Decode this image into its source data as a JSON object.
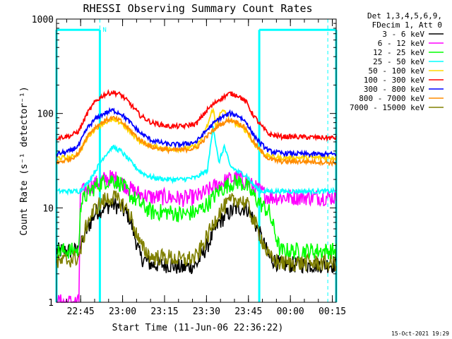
{
  "chart_data": {
    "type": "line",
    "title": "RHESSI Observing Summary Count Rates",
    "xlabel": "Start Time (11-Jun-06 22:36:22)",
    "ylabel": "Count Rate (s⁻¹ detector⁻¹)",
    "yscale": "log",
    "ylim": [
      1,
      1000
    ],
    "xlim_minutes": [
      0,
      100
    ],
    "y_ticks": [
      {
        "value": 1,
        "label": "1"
      },
      {
        "value": 10,
        "label": "10"
      },
      {
        "value": 100,
        "label": "100"
      },
      {
        "value": 1000,
        "label": "1000"
      }
    ],
    "x_ticks": [
      {
        "minute": 8.63,
        "label": "22:45"
      },
      {
        "minute": 23.63,
        "label": "23:00"
      },
      {
        "minute": 38.63,
        "label": "23:15"
      },
      {
        "minute": 53.63,
        "label": "23:30"
      },
      {
        "minute": 68.63,
        "label": "23:45"
      },
      {
        "minute": 83.63,
        "label": "00:00"
      },
      {
        "minute": 98.63,
        "label": "00:15"
      }
    ],
    "legend_header": [
      "Det 1,3,4,5,6,9,",
      "FDecim 1, Att 0"
    ],
    "legend_placement": "right",
    "footer": "15-Oct-2021 19:29",
    "annotations": [
      {
        "text": "N",
        "minute": 16.5,
        "value": 770
      }
    ],
    "night_intervals": [
      [
        0,
        15.5
      ],
      [
        72.5,
        100
      ]
    ],
    "night_level": 770,
    "dashed_markers": [
      15.5,
      97
    ],
    "series": [
      {
        "name": "3 - 6 keV",
        "color": "#000000",
        "points": [
          [
            0,
            3.5
          ],
          [
            8,
            3.5
          ],
          [
            11,
            6
          ],
          [
            14,
            9
          ],
          [
            17,
            10
          ],
          [
            20,
            11
          ],
          [
            23,
            10
          ],
          [
            26,
            8
          ],
          [
            28,
            5
          ],
          [
            30,
            3
          ],
          [
            34,
            2.5
          ],
          [
            40,
            2.5
          ],
          [
            45,
            2.3
          ],
          [
            50,
            2.5
          ],
          [
            54,
            4
          ],
          [
            58,
            7
          ],
          [
            62,
            9
          ],
          [
            65,
            10
          ],
          [
            68,
            10
          ],
          [
            70,
            8
          ],
          [
            73,
            5
          ],
          [
            76,
            3
          ],
          [
            80,
            2.5
          ],
          [
            90,
            2.5
          ],
          [
            100,
            2.5
          ]
        ]
      },
      {
        "name": "6 - 12 keV",
        "color": "#ff00ff",
        "points": [
          [
            0,
            1
          ],
          [
            8,
            1
          ],
          [
            8.5,
            14
          ],
          [
            11,
            16
          ],
          [
            14,
            18
          ],
          [
            17,
            20
          ],
          [
            20,
            21
          ],
          [
            23,
            19
          ],
          [
            26,
            16
          ],
          [
            30,
            14
          ],
          [
            34,
            13
          ],
          [
            40,
            13
          ],
          [
            45,
            12.5
          ],
          [
            50,
            13
          ],
          [
            54,
            15
          ],
          [
            58,
            18
          ],
          [
            62,
            20
          ],
          [
            65,
            21
          ],
          [
            68,
            19
          ],
          [
            70,
            17
          ],
          [
            73,
            15
          ],
          [
            76,
            13
          ],
          [
            80,
            13
          ],
          [
            90,
            13
          ],
          [
            100,
            13
          ]
        ]
      },
      {
        "name": "12 - 25 keV",
        "color": "#00ff00",
        "points": [
          [
            0,
            3.5
          ],
          [
            8,
            3.5
          ],
          [
            8.5,
            11
          ],
          [
            11,
            14
          ],
          [
            14,
            17
          ],
          [
            17,
            19
          ],
          [
            20,
            20
          ],
          [
            23,
            18
          ],
          [
            26,
            14
          ],
          [
            30,
            11
          ],
          [
            34,
            9
          ],
          [
            40,
            9
          ],
          [
            45,
            8.5
          ],
          [
            50,
            9
          ],
          [
            54,
            11
          ],
          [
            58,
            15
          ],
          [
            62,
            18
          ],
          [
            65,
            19
          ],
          [
            68,
            17
          ],
          [
            70,
            14
          ],
          [
            73,
            11
          ],
          [
            76,
            9
          ],
          [
            80,
            3.5
          ],
          [
            90,
            3.5
          ],
          [
            100,
            3.5
          ]
        ]
      },
      {
        "name": "25 - 50 keV",
        "color": "#00ffff",
        "points": [
          [
            0,
            15
          ],
          [
            8,
            15
          ],
          [
            11,
            18
          ],
          [
            14,
            25
          ],
          [
            17,
            35
          ],
          [
            20,
            44
          ],
          [
            23,
            40
          ],
          [
            26,
            32
          ],
          [
            30,
            24
          ],
          [
            34,
            21
          ],
          [
            40,
            20
          ],
          [
            45,
            20
          ],
          [
            50,
            21
          ],
          [
            54,
            25
          ],
          [
            56,
            75
          ],
          [
            58,
            30
          ],
          [
            60,
            45
          ],
          [
            62,
            28
          ],
          [
            65,
            24
          ],
          [
            68,
            22
          ],
          [
            70,
            18
          ],
          [
            73,
            15
          ],
          [
            80,
            15
          ],
          [
            90,
            15
          ],
          [
            100,
            15
          ]
        ]
      },
      {
        "name": "50 - 100 keV",
        "color": "#ffd700",
        "points": [
          [
            0,
            34
          ],
          [
            5,
            34
          ],
          [
            8,
            38
          ],
          [
            11,
            55
          ],
          [
            14,
            70
          ],
          [
            17,
            80
          ],
          [
            20,
            85
          ],
          [
            23,
            80
          ],
          [
            26,
            65
          ],
          [
            30,
            50
          ],
          [
            34,
            45
          ],
          [
            40,
            42
          ],
          [
            45,
            42
          ],
          [
            50,
            45
          ],
          [
            52,
            55
          ],
          [
            54,
            75
          ],
          [
            56,
            115
          ],
          [
            57,
            70
          ],
          [
            58,
            95
          ],
          [
            60,
            108
          ],
          [
            62,
            85
          ],
          [
            65,
            75
          ],
          [
            68,
            65
          ],
          [
            70,
            50
          ],
          [
            73,
            40
          ],
          [
            76,
            35
          ],
          [
            80,
            34
          ],
          [
            90,
            34
          ],
          [
            100,
            34
          ]
        ]
      },
      {
        "name": "100 - 300 keV",
        "color": "#ff0000",
        "points": [
          [
            0,
            55
          ],
          [
            5,
            58
          ],
          [
            8,
            65
          ],
          [
            11,
            100
          ],
          [
            14,
            135
          ],
          [
            17,
            158
          ],
          [
            20,
            168
          ],
          [
            23,
            158
          ],
          [
            26,
            130
          ],
          [
            30,
            95
          ],
          [
            34,
            80
          ],
          [
            40,
            73
          ],
          [
            45,
            73
          ],
          [
            50,
            78
          ],
          [
            54,
            110
          ],
          [
            58,
            140
          ],
          [
            62,
            163
          ],
          [
            65,
            155
          ],
          [
            68,
            130
          ],
          [
            70,
            100
          ],
          [
            73,
            75
          ],
          [
            76,
            60
          ],
          [
            80,
            57
          ],
          [
            90,
            56
          ],
          [
            100,
            55
          ]
        ]
      },
      {
        "name": "300 - 800 keV",
        "color": "#0000ff",
        "points": [
          [
            0,
            37
          ],
          [
            5,
            40
          ],
          [
            8,
            46
          ],
          [
            11,
            70
          ],
          [
            14,
            88
          ],
          [
            17,
            100
          ],
          [
            20,
            108
          ],
          [
            23,
            100
          ],
          [
            26,
            82
          ],
          [
            30,
            62
          ],
          [
            34,
            52
          ],
          [
            40,
            47
          ],
          [
            45,
            47
          ],
          [
            50,
            50
          ],
          [
            54,
            68
          ],
          [
            58,
            88
          ],
          [
            62,
            100
          ],
          [
            65,
            95
          ],
          [
            68,
            80
          ],
          [
            70,
            62
          ],
          [
            73,
            48
          ],
          [
            76,
            40
          ],
          [
            80,
            38
          ],
          [
            90,
            37
          ],
          [
            100,
            37
          ]
        ]
      },
      {
        "name": "800 - 7000 keV",
        "color": "#ff8c00",
        "points": [
          [
            0,
            30
          ],
          [
            5,
            33
          ],
          [
            8,
            38
          ],
          [
            11,
            58
          ],
          [
            14,
            72
          ],
          [
            17,
            83
          ],
          [
            20,
            90
          ],
          [
            23,
            83
          ],
          [
            26,
            68
          ],
          [
            30,
            52
          ],
          [
            34,
            44
          ],
          [
            40,
            41
          ],
          [
            45,
            41
          ],
          [
            50,
            43
          ],
          [
            54,
            58
          ],
          [
            58,
            75
          ],
          [
            62,
            86
          ],
          [
            65,
            80
          ],
          [
            68,
            68
          ],
          [
            70,
            52
          ],
          [
            73,
            40
          ],
          [
            76,
            33
          ],
          [
            80,
            31
          ],
          [
            90,
            31
          ],
          [
            100,
            30
          ]
        ]
      },
      {
        "name": "7000 - 15000 keV",
        "color": "#808000",
        "points": [
          [
            0,
            2.6
          ],
          [
            8,
            3
          ],
          [
            11,
            7
          ],
          [
            14,
            10
          ],
          [
            17,
            12
          ],
          [
            20,
            13
          ],
          [
            23,
            11.5
          ],
          [
            26,
            9
          ],
          [
            28,
            6
          ],
          [
            30,
            4
          ],
          [
            34,
            3
          ],
          [
            40,
            3
          ],
          [
            45,
            2.8
          ],
          [
            50,
            3
          ],
          [
            54,
            5
          ],
          [
            58,
            9
          ],
          [
            62,
            11.5
          ],
          [
            65,
            12.5
          ],
          [
            68,
            11
          ],
          [
            70,
            8
          ],
          [
            73,
            5
          ],
          [
            76,
            3
          ],
          [
            80,
            2.6
          ],
          [
            90,
            2.6
          ],
          [
            100,
            2.6
          ]
        ]
      }
    ]
  }
}
